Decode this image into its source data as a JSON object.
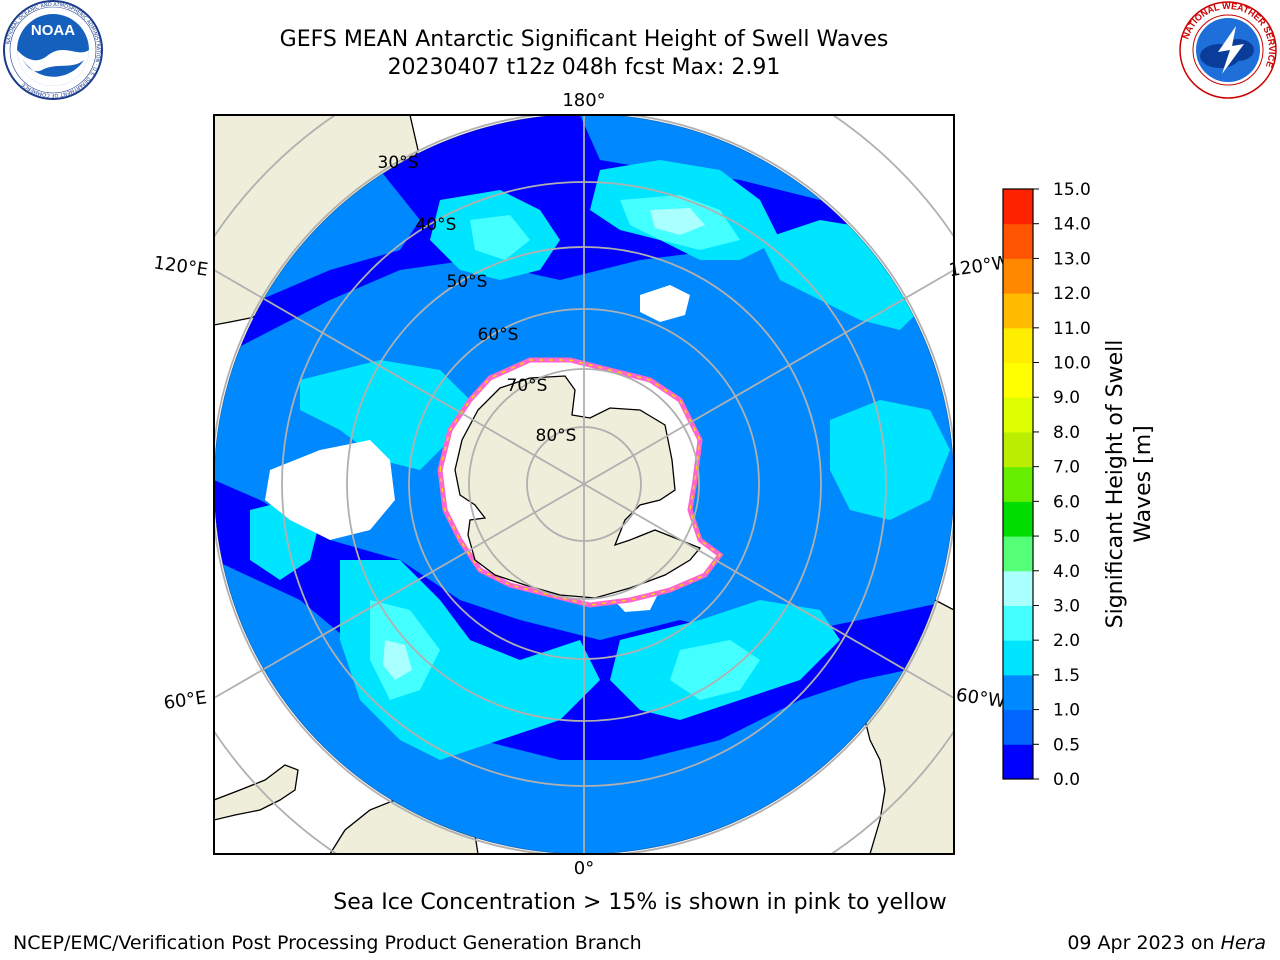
{
  "header": {
    "title_line1": "GEFS MEAN Antarctic Significant Height of Swell Waves",
    "title_line2": "20230407 t12z 048h fcst   Max: 2.91"
  },
  "logos": {
    "left": {
      "name": "noaa-logo",
      "text": "NOAA",
      "ring_text": "NATIONAL OCEANIC AND ATMOSPHERIC ADMINISTRATION · U.S. DEPARTMENT OF COMMERCE"
    },
    "right": {
      "name": "nws-logo",
      "ring_text": "NATIONAL WEATHER SERVICE"
    }
  },
  "map": {
    "projection": "south-polar-stereographic",
    "longitude_labels": [
      "180°",
      "0°",
      "120°E",
      "120°W",
      "60°E",
      "60°W"
    ],
    "latitude_labels": [
      "30°S",
      "40°S",
      "50°S",
      "60°S",
      "70°S",
      "80°S"
    ],
    "colors": {
      "land": "#eeeeda",
      "ice_edge_pink": "#ff66cc",
      "ice_edge_yellow": "#ffd700",
      "grid": "#b0b0b0"
    }
  },
  "colorbar": {
    "label_line1": "Significant Height of Swell",
    "label_line2": "Waves [m]",
    "ticks": [
      "0.0",
      "0.5",
      "1.0",
      "1.5",
      "2.0",
      "3.0",
      "4.0",
      "5.0",
      "6.0",
      "7.0",
      "8.0",
      "9.0",
      "10.0",
      "11.0",
      "12.0",
      "13.0",
      "14.0",
      "15.0"
    ],
    "colors": [
      "#0000ff",
      "#0066ff",
      "#0088ff",
      "#00e5ff",
      "#44ffff",
      "#aaffff",
      "#55ff77",
      "#00dd00",
      "#66ee00",
      "#bbee00",
      "#ddff00",
      "#ffff00",
      "#ffee00",
      "#ffbb00",
      "#ff8800",
      "#ff5500",
      "#ff2200",
      "#ff0000"
    ]
  },
  "footer": {
    "caption": "Sea Ice Concentration > 15% is shown in pink to yellow",
    "credit": "NCEP/EMC/Verification Post Processing Product Generation Branch",
    "date": "09 Apr 2023 on ",
    "machine": "Hera"
  }
}
